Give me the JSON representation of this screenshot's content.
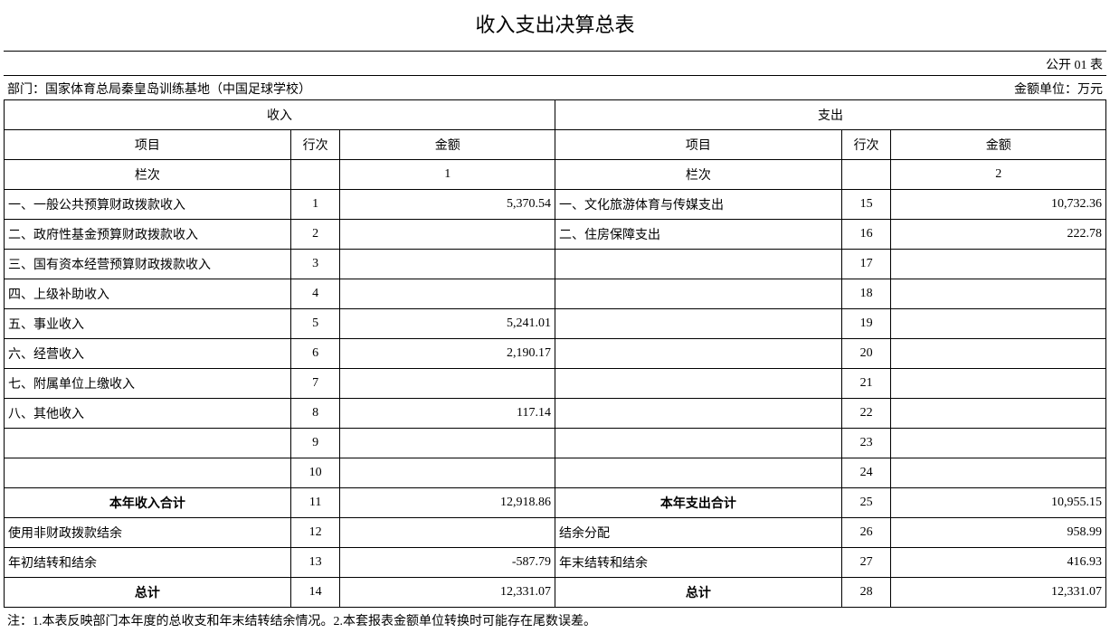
{
  "title": "收入支出决算总表",
  "meta": {
    "form_code": "公开 01 表",
    "dept_label": "部门：国家体育总局秦皇岛训练基地（中国足球学校）",
    "unit_label": "金额单位：万元"
  },
  "group_headers": {
    "income": "收入",
    "expense": "支出"
  },
  "sub_headers": {
    "item": "项目",
    "rownum": "行次",
    "amount": "金额"
  },
  "colnum_row": {
    "label": "栏次",
    "income_col": "1",
    "expense_col": "2"
  },
  "rows": [
    {
      "inc_item": "一、一般公共预算财政拨款收入",
      "inc_num": "1",
      "inc_amt": "5,370.54",
      "exp_item": "一、文化旅游体育与传媒支出",
      "exp_num": "15",
      "exp_amt": "10,732.36"
    },
    {
      "inc_item": "二、政府性基金预算财政拨款收入",
      "inc_num": "2",
      "inc_amt": "",
      "exp_item": "二、住房保障支出",
      "exp_num": "16",
      "exp_amt": "222.78"
    },
    {
      "inc_item": "三、国有资本经营预算财政拨款收入",
      "inc_num": "3",
      "inc_amt": "",
      "exp_item": "",
      "exp_num": "17",
      "exp_amt": ""
    },
    {
      "inc_item": "四、上级补助收入",
      "inc_num": "4",
      "inc_amt": "",
      "exp_item": "",
      "exp_num": "18",
      "exp_amt": ""
    },
    {
      "inc_item": "五、事业收入",
      "inc_num": "5",
      "inc_amt": "5,241.01",
      "exp_item": "",
      "exp_num": "19",
      "exp_amt": ""
    },
    {
      "inc_item": "六、经营收入",
      "inc_num": "6",
      "inc_amt": "2,190.17",
      "exp_item": "",
      "exp_num": "20",
      "exp_amt": ""
    },
    {
      "inc_item": "七、附属单位上缴收入",
      "inc_num": "7",
      "inc_amt": "",
      "exp_item": "",
      "exp_num": "21",
      "exp_amt": ""
    },
    {
      "inc_item": "八、其他收入",
      "inc_num": "8",
      "inc_amt": "117.14",
      "exp_item": "",
      "exp_num": "22",
      "exp_amt": ""
    },
    {
      "inc_item": "",
      "inc_num": "9",
      "inc_amt": "",
      "exp_item": "",
      "exp_num": "23",
      "exp_amt": ""
    },
    {
      "inc_item": "",
      "inc_num": "10",
      "inc_amt": "",
      "exp_item": "",
      "exp_num": "24",
      "exp_amt": ""
    }
  ],
  "subtotal": {
    "inc_item": "本年收入合计",
    "inc_num": "11",
    "inc_amt": "12,918.86",
    "exp_item": "本年支出合计",
    "exp_num": "25",
    "exp_amt": "10,955.15"
  },
  "extra1": {
    "inc_item": "使用非财政拨款结余",
    "inc_num": "12",
    "inc_amt": "",
    "exp_item": "结余分配",
    "exp_num": "26",
    "exp_amt": "958.99"
  },
  "extra2": {
    "inc_item": "年初结转和结余",
    "inc_num": "13",
    "inc_amt": "-587.79",
    "exp_item": "年末结转和结余",
    "exp_num": "27",
    "exp_amt": "416.93"
  },
  "total": {
    "inc_item": "总计",
    "inc_num": "14",
    "inc_amt": "12,331.07",
    "exp_item": "总计",
    "exp_num": "28",
    "exp_amt": "12,331.07"
  },
  "footnote": "注：1.本表反映部门本年度的总收支和年末结转结余情况。2.本套报表金额单位转换时可能存在尾数误差。",
  "style": {
    "col_widths_pct": [
      26,
      4.5,
      19.5,
      26,
      4.5,
      19.5
    ],
    "border_color": "#000000",
    "background": "#ffffff",
    "title_fontsize": 22,
    "body_fontsize": 14
  }
}
